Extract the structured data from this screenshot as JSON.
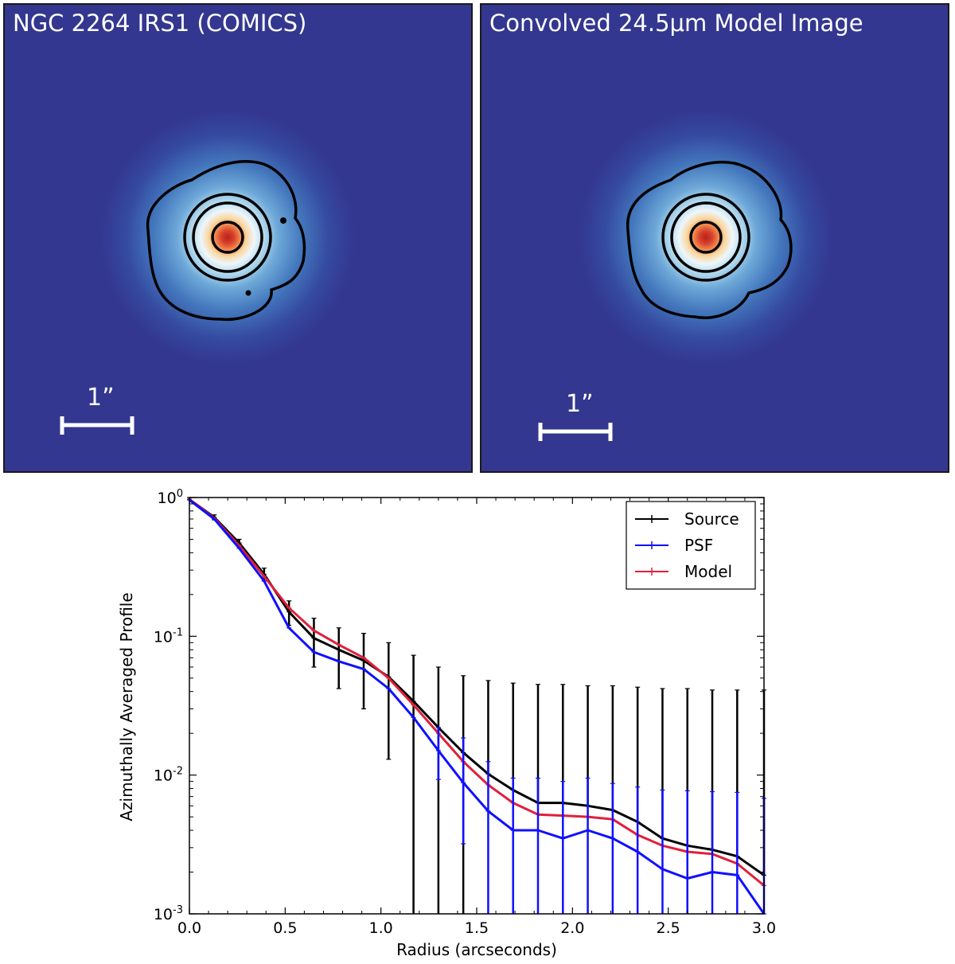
{
  "panels": [
    {
      "title": "NGC 2264 IRS1 (COMICS)",
      "scale_bar_label": "1”"
    },
    {
      "title": "Convolved 24.5μm Model Image",
      "scale_bar_label": "1”"
    }
  ],
  "colors": {
    "background_blue": "#33378f",
    "contour": "#000000",
    "source": "#000000",
    "psf": "#1010ff",
    "model": "#e0203a"
  },
  "chart_data": {
    "type": "line",
    "title": "",
    "xlabel": "Radius (arcseconds)",
    "ylabel": "Azimuthally Averaged Profile",
    "xlim": [
      0.0,
      3.0
    ],
    "ylim": [
      0.001,
      1.0
    ],
    "yscale": "log",
    "x_ticks": [
      "0.0",
      "0.5",
      "1.0",
      "1.5",
      "2.0",
      "2.5",
      "3.0"
    ],
    "y_ticks": [
      {
        "base": "10",
        "exp": "-3"
      },
      {
        "base": "10",
        "exp": "-2"
      },
      {
        "base": "10",
        "exp": "-1"
      },
      {
        "base": "10",
        "exp": "0"
      }
    ],
    "legend_position": "top-right",
    "x": [
      0.0,
      0.13,
      0.26,
      0.39,
      0.52,
      0.65,
      0.78,
      0.91,
      1.04,
      1.17,
      1.3,
      1.43,
      1.56,
      1.69,
      1.82,
      1.95,
      2.08,
      2.21,
      2.34,
      2.47,
      2.6,
      2.73,
      2.86,
      3.0
    ],
    "series": [
      {
        "name": "Source",
        "color": "#000000",
        "values": [
          0.97,
          0.72,
          0.47,
          0.28,
          0.15,
          0.097,
          0.08,
          0.067,
          0.051,
          0.034,
          0.022,
          0.0145,
          0.0102,
          0.0078,
          0.0063,
          0.0063,
          0.006,
          0.0056,
          0.0046,
          0.0035,
          0.0031,
          0.0029,
          0.0026,
          0.0019
        ],
        "err_low": [
          0.97,
          0.69,
          0.45,
          0.25,
          0.12,
          0.06,
          0.042,
          0.03,
          0.013,
          0.0005,
          0.0005,
          0.0005,
          null,
          null,
          null,
          null,
          null,
          null,
          null,
          null,
          null,
          null,
          null,
          null
        ],
        "err_high": [
          1.0,
          0.75,
          0.5,
          0.31,
          0.18,
          0.135,
          0.115,
          0.105,
          0.09,
          0.073,
          0.06,
          0.052,
          0.048,
          0.046,
          0.045,
          0.045,
          0.044,
          0.044,
          0.043,
          0.042,
          0.042,
          0.041,
          0.041,
          0.041
        ]
      },
      {
        "name": "PSF",
        "color": "#1010ff",
        "values": [
          0.96,
          0.7,
          0.43,
          0.25,
          0.115,
          0.077,
          0.066,
          0.058,
          0.042,
          0.026,
          0.015,
          0.0088,
          0.0055,
          0.004,
          0.004,
          0.0035,
          0.004,
          0.0035,
          0.0028,
          0.0021,
          0.0018,
          0.002,
          0.0019,
          0.001
        ],
        "err_low": [
          null,
          null,
          null,
          null,
          null,
          null,
          null,
          null,
          null,
          null,
          0.0093,
          0.0032,
          0.0005,
          0.0005,
          0.0005,
          0.0005,
          0.0005,
          0.0005,
          0.0005,
          0.0005,
          0.0005,
          0.0005,
          0.0005,
          0.0005
        ],
        "err_high": [
          null,
          null,
          null,
          null,
          null,
          null,
          null,
          null,
          null,
          null,
          0.022,
          0.0185,
          0.0125,
          0.0095,
          0.0095,
          0.009,
          0.0095,
          0.0087,
          0.0082,
          0.0078,
          0.0077,
          0.0076,
          0.0075,
          0.0068
        ]
      },
      {
        "name": "Model",
        "color": "#e0203a",
        "values": [
          0.97,
          0.71,
          0.45,
          0.27,
          0.16,
          0.11,
          0.087,
          0.07,
          0.05,
          0.032,
          0.02,
          0.0125,
          0.0085,
          0.0063,
          0.0052,
          0.0051,
          0.005,
          0.0048,
          0.0037,
          0.0031,
          0.0028,
          0.0027,
          0.0023,
          0.0016
        ],
        "err_low": [],
        "err_high": []
      }
    ]
  }
}
